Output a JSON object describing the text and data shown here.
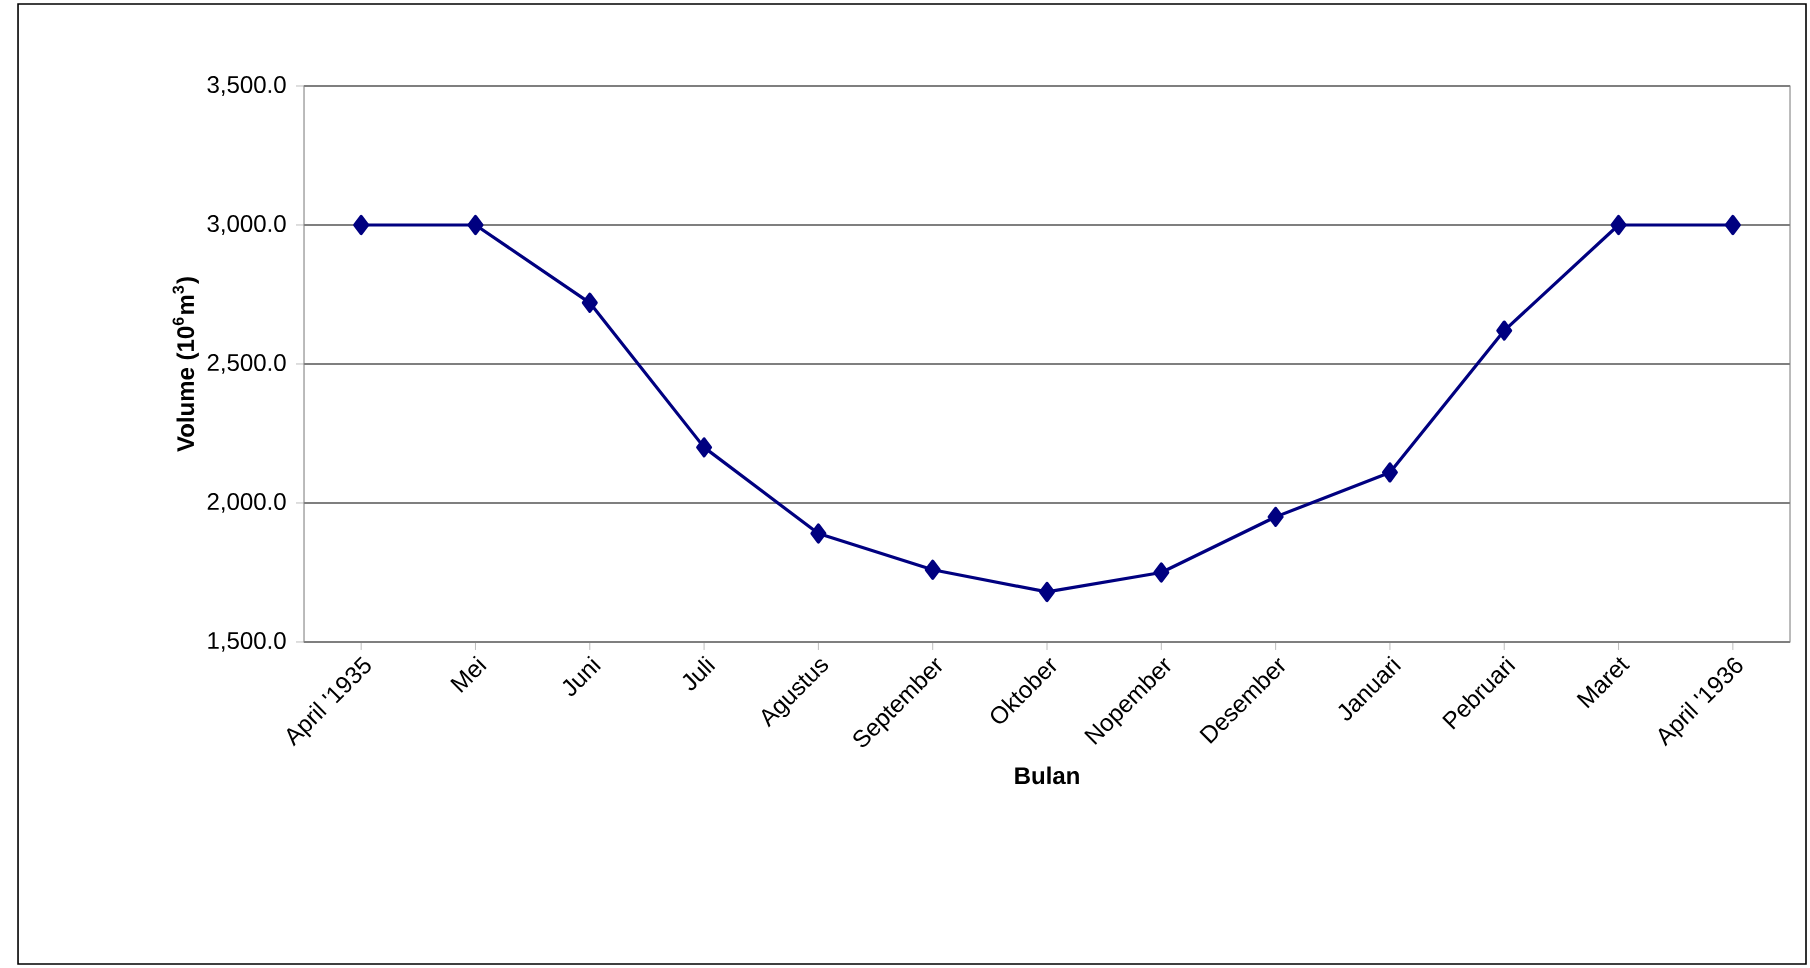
{
  "chart_data": {
    "type": "line",
    "xlabel": "Bulan",
    "ylabel": "**Volume (10$^{6}$m$^{3}$)**",
    "categories": [
      "April '1935",
      "Mei",
      "Juni",
      "Juli",
      "Agustus",
      "September",
      "Oktober",
      "Nopember",
      "Desember",
      "Januari",
      "Pebruari",
      "Maret",
      "April '1936"
    ],
    "series": [
      {
        "color": "#000080",
        "values": [
          3000,
          3000,
          2720,
          2200,
          1890,
          1760,
          1680,
          1750,
          1950,
          2110,
          2620,
          3000,
          3000
        ]
      }
    ],
    "ylim": [
      1500,
      3500
    ],
    "yticks": [
      {
        "value": 1500,
        "label": "1,500.0"
      },
      {
        "value": 2000,
        "label": "2,000.0"
      },
      {
        "value": 2500,
        "label": "2,500.0"
      },
      {
        "value": 3000,
        "label": "3,000.0"
      },
      {
        "value": 3500,
        "label": "3,500.0"
      }
    ],
    "grid": "y",
    "marker": "diamond",
    "line_style": "solid"
  }
}
